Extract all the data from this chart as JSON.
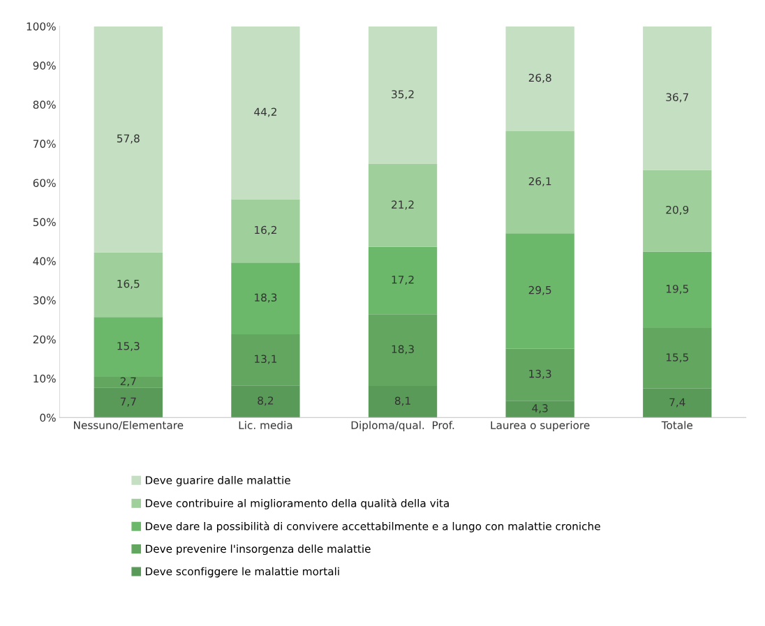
{
  "chart_data": {
    "type": "bar",
    "stacked": true,
    "legend": "bottom",
    "grid": false,
    "categories": [
      "Nessuno/Elementare",
      "Lic. media",
      "Diploma/qual.  Prof.",
      "Laurea o superiore",
      "Totale"
    ],
    "ylim": [
      0,
      100
    ],
    "yticks": [
      {
        "value": 0,
        "label": "0%"
      },
      {
        "value": 10,
        "label": "10%"
      },
      {
        "value": 20,
        "label": "20%"
      },
      {
        "value": 30,
        "label": "30%"
      },
      {
        "value": 40,
        "label": "40%"
      },
      {
        "value": 50,
        "label": "50%"
      },
      {
        "value": 60,
        "label": "60%"
      },
      {
        "value": 70,
        "label": "70%"
      },
      {
        "value": 80,
        "label": "80%"
      },
      {
        "value": 90,
        "label": "90%"
      },
      {
        "value": 100,
        "label": "100%"
      }
    ],
    "series": [
      {
        "name": "Deve sconfiggere le malattie mortali",
        "color": "#5a9a58",
        "values": [
          7.7,
          8.2,
          8.1,
          4.3,
          7.4
        ],
        "value_labels": [
          "7,7",
          "8,2",
          "8,1",
          "4,3",
          "7,4"
        ]
      },
      {
        "name": "Deve prevenire l'insorgenza delle malattie",
        "color": "#62a65f",
        "values": [
          2.7,
          13.1,
          18.3,
          13.3,
          15.5
        ],
        "value_labels": [
          "2,7",
          "13,1",
          "18,3",
          "13,3",
          "15,5"
        ]
      },
      {
        "name": "Deve dare la possibilità di convivere accettabilmente e a lungo con malattie croniche",
        "color": "#6bb86a",
        "values": [
          15.3,
          18.3,
          17.2,
          29.5,
          19.5
        ],
        "value_labels": [
          "15,3",
          "18,3",
          "17,2",
          "29,5",
          "19,5"
        ]
      },
      {
        "name": "Deve contribuire al miglioramento della qualità della vita",
        "color": "#9fcf9b",
        "values": [
          16.5,
          16.2,
          21.2,
          26.1,
          20.9
        ],
        "value_labels": [
          "16,5",
          "16,2",
          "21,2",
          "26,1",
          "20,9"
        ]
      },
      {
        "name": "Deve guarire dalle malattie",
        "color": "#c5dfc2",
        "values": [
          57.8,
          44.2,
          35.2,
          26.8,
          36.7
        ],
        "value_labels": [
          "57,8",
          "44,2",
          "35,2",
          "26,8",
          "36,7"
        ]
      }
    ]
  }
}
